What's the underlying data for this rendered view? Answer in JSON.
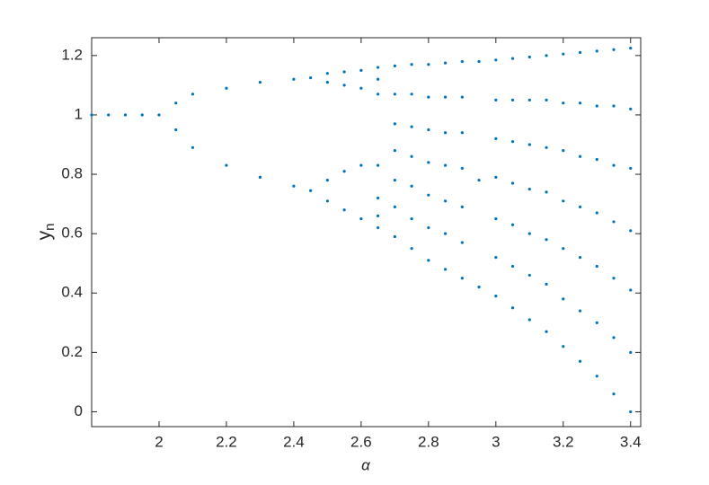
{
  "chart_data": {
    "type": "scatter",
    "color": "#0072BD",
    "xlabel": "α",
    "ylabel": {
      "text": "y",
      "subscript": "n"
    },
    "xlim": [
      1.8,
      3.43
    ],
    "ylim": [
      -0.05,
      1.26
    ],
    "xticks": [
      2,
      2.2,
      2.4,
      2.6,
      2.8,
      3,
      3.2,
      3.4
    ],
    "yticks": [
      0,
      0.2,
      0.4,
      0.6,
      0.8,
      1,
      1.2
    ],
    "x": [
      1.8,
      1.85,
      1.9,
      1.95,
      2.0,
      2.05,
      2.1,
      2.2,
      2.3,
      2.4,
      2.45,
      2.5,
      2.55,
      2.6,
      2.65,
      2.7,
      2.75,
      2.8,
      2.85,
      2.9,
      2.95,
      3.0,
      3.05,
      3.1,
      3.15,
      3.2,
      3.25,
      3.3,
      3.35,
      3.4
    ],
    "values": [
      [
        1
      ],
      [
        1
      ],
      [
        1
      ],
      [
        1
      ],
      [
        1
      ],
      [
        1.04,
        0.95
      ],
      [
        1.07,
        0.89
      ],
      [
        1.09,
        0.83
      ],
      [
        1.11,
        0.79
      ],
      [
        1.12,
        0.76
      ],
      [
        1.125,
        0.745
      ],
      [
        1.14,
        1.11,
        0.78,
        0.71
      ],
      [
        1.145,
        1.1,
        0.81,
        0.68
      ],
      [
        1.15,
        1.09,
        0.83,
        0.65
      ],
      [
        0.62,
        0.66,
        0.72,
        0.83,
        1.07,
        1.12,
        1.16
      ],
      [
        0.59,
        0.69,
        0.78,
        0.88,
        0.97,
        1.07,
        1.165
      ],
      [
        0.55,
        0.65,
        0.76,
        0.86,
        0.96,
        1.07,
        1.17
      ],
      [
        0.51,
        0.62,
        0.73,
        0.84,
        0.95,
        1.06,
        1.17
      ],
      [
        0.48,
        0.6,
        0.71,
        0.83,
        0.94,
        1.06,
        1.175
      ],
      [
        0.45,
        0.57,
        0.69,
        0.82,
        0.94,
        1.06,
        1.18
      ],
      [
        0.42,
        0.78,
        1.18
      ],
      [
        0.39,
        0.52,
        0.65,
        0.79,
        0.92,
        1.05,
        1.185
      ],
      [
        0.35,
        0.49,
        0.63,
        0.77,
        0.91,
        1.05,
        1.19
      ],
      [
        0.31,
        0.46,
        0.6,
        0.75,
        0.9,
        1.05,
        1.195
      ],
      [
        0.27,
        0.43,
        0.58,
        0.74,
        0.89,
        1.05,
        1.2
      ],
      [
        0.22,
        0.38,
        0.55,
        0.71,
        0.88,
        1.04,
        1.205
      ],
      [
        0.17,
        0.34,
        0.52,
        0.69,
        0.86,
        1.04,
        1.21
      ],
      [
        0.12,
        0.3,
        0.49,
        0.67,
        0.85,
        1.03,
        1.215
      ],
      [
        0.06,
        0.25,
        0.45,
        0.64,
        0.83,
        1.03,
        1.22
      ],
      [
        0,
        0.2,
        0.41,
        0.61,
        0.82,
        1.02,
        1.225
      ]
    ]
  }
}
